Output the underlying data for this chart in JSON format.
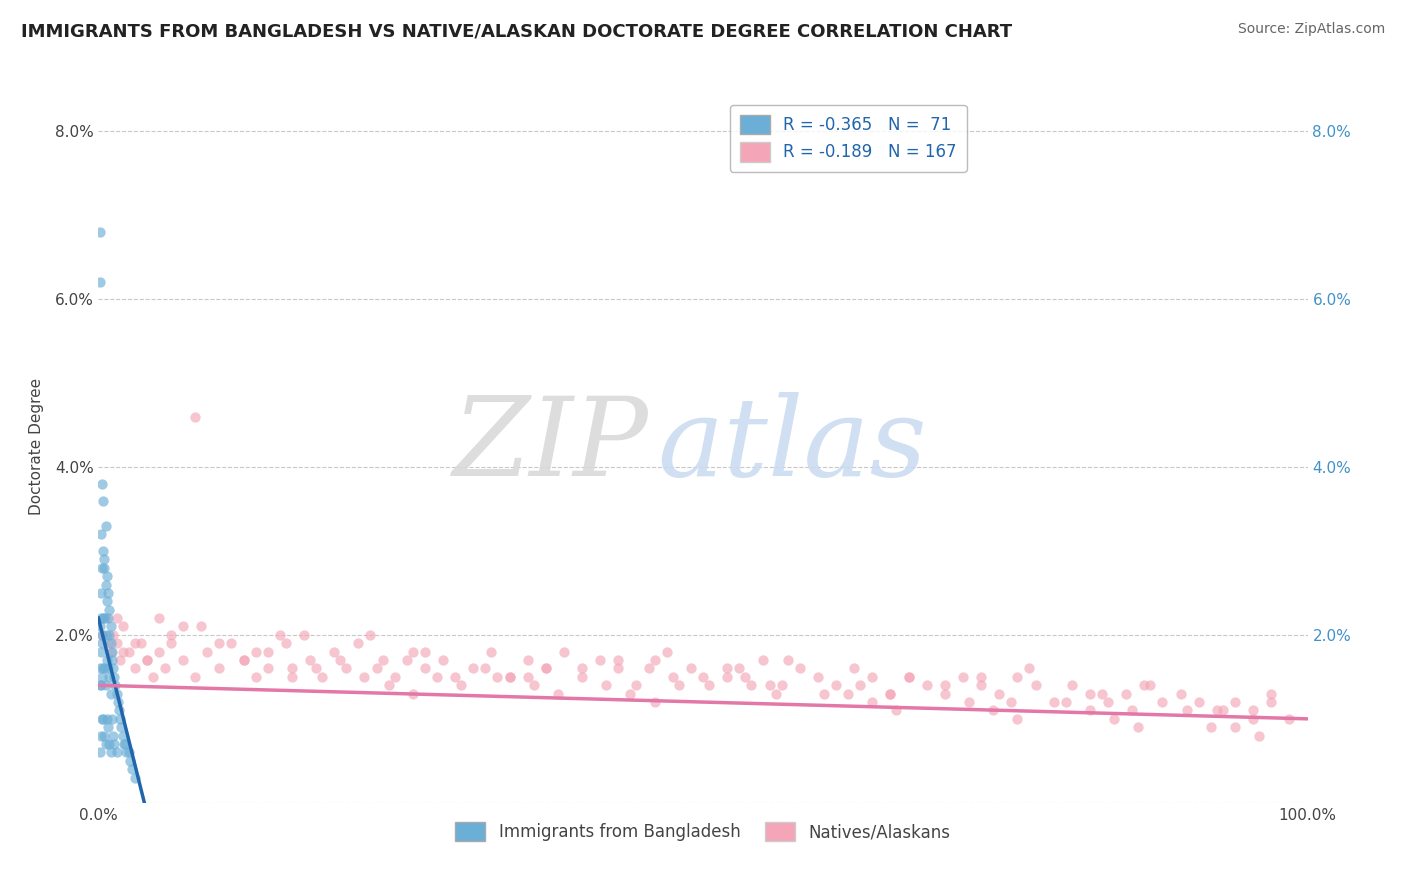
{
  "title": "IMMIGRANTS FROM BANGLADESH VS NATIVE/ALASKAN DOCTORATE DEGREE CORRELATION CHART",
  "source": "Source: ZipAtlas.com",
  "ylabel": "Doctorate Degree",
  "xlim": [
    0.0,
    1.0
  ],
  "ylim": [
    0.0,
    0.085
  ],
  "y_ticks": [
    0.0,
    0.02,
    0.04,
    0.06,
    0.08
  ],
  "y_tick_labels_left": [
    "",
    "2.0%",
    "4.0%",
    "6.0%",
    "8.0%"
  ],
  "y_tick_labels_right": [
    "",
    "2.0%",
    "4.0%",
    "6.0%",
    "8.0%"
  ],
  "legend_r_entries": [
    {
      "color": "#aac8e8",
      "text_r": "R = -0.365",
      "text_n": "N =  71"
    },
    {
      "color": "#f4b8c8",
      "text_r": "R = -0.189",
      "text_n": "N = 167"
    }
  ],
  "legend_labels_bottom": [
    "Immigrants from Bangladesh",
    "Natives/Alaskans"
  ],
  "blue_color": "#6baed6",
  "pink_color": "#f4a6b8",
  "blue_line_color": "#2166ac",
  "pink_line_color": "#e377a8",
  "blue_line_x": [
    0.0,
    0.038
  ],
  "blue_line_y": [
    0.022,
    0.0
  ],
  "pink_line_x": [
    0.0,
    1.0
  ],
  "pink_line_y": [
    0.014,
    0.01
  ],
  "background_color": "#ffffff",
  "grid_color": "#c8c8c8",
  "blue_scatter_x": [
    0.001,
    0.001,
    0.001,
    0.001,
    0.001,
    0.002,
    0.002,
    0.002,
    0.002,
    0.002,
    0.003,
    0.003,
    0.003,
    0.003,
    0.003,
    0.004,
    0.004,
    0.004,
    0.004,
    0.005,
    0.005,
    0.005,
    0.005,
    0.006,
    0.006,
    0.006,
    0.006,
    0.007,
    0.007,
    0.007,
    0.008,
    0.008,
    0.008,
    0.009,
    0.009,
    0.009,
    0.01,
    0.01,
    0.01,
    0.011,
    0.011,
    0.012,
    0.012,
    0.013,
    0.013,
    0.014,
    0.015,
    0.015,
    0.016,
    0.017,
    0.018,
    0.019,
    0.02,
    0.021,
    0.022,
    0.023,
    0.025,
    0.026,
    0.028,
    0.03,
    0.001,
    0.002,
    0.003,
    0.004,
    0.005,
    0.006,
    0.007,
    0.008,
    0.009,
    0.01,
    0.011
  ],
  "blue_scatter_y": [
    0.068,
    0.021,
    0.016,
    0.014,
    0.006,
    0.032,
    0.022,
    0.018,
    0.014,
    0.008,
    0.038,
    0.028,
    0.02,
    0.015,
    0.01,
    0.03,
    0.022,
    0.016,
    0.01,
    0.028,
    0.022,
    0.016,
    0.008,
    0.026,
    0.02,
    0.014,
    0.007,
    0.024,
    0.017,
    0.01,
    0.022,
    0.016,
    0.009,
    0.02,
    0.015,
    0.007,
    0.019,
    0.013,
    0.006,
    0.018,
    0.01,
    0.016,
    0.008,
    0.015,
    0.007,
    0.014,
    0.013,
    0.006,
    0.012,
    0.011,
    0.01,
    0.009,
    0.008,
    0.007,
    0.007,
    0.006,
    0.006,
    0.005,
    0.004,
    0.003,
    0.062,
    0.025,
    0.019,
    0.036,
    0.029,
    0.033,
    0.027,
    0.025,
    0.023,
    0.021,
    0.017
  ],
  "pink_scatter_x": [
    0.003,
    0.006,
    0.008,
    0.01,
    0.012,
    0.015,
    0.018,
    0.02,
    0.025,
    0.03,
    0.035,
    0.04,
    0.045,
    0.05,
    0.055,
    0.06,
    0.07,
    0.08,
    0.09,
    0.1,
    0.11,
    0.12,
    0.13,
    0.14,
    0.15,
    0.16,
    0.175,
    0.185,
    0.195,
    0.205,
    0.215,
    0.225,
    0.235,
    0.245,
    0.26,
    0.27,
    0.285,
    0.295,
    0.31,
    0.325,
    0.34,
    0.355,
    0.37,
    0.385,
    0.4,
    0.415,
    0.43,
    0.445,
    0.46,
    0.475,
    0.49,
    0.505,
    0.52,
    0.535,
    0.55,
    0.565,
    0.58,
    0.595,
    0.61,
    0.625,
    0.64,
    0.655,
    0.67,
    0.685,
    0.7,
    0.715,
    0.73,
    0.745,
    0.76,
    0.775,
    0.79,
    0.805,
    0.82,
    0.835,
    0.85,
    0.865,
    0.88,
    0.895,
    0.91,
    0.925,
    0.94,
    0.955,
    0.97,
    0.985,
    0.05,
    0.1,
    0.2,
    0.3,
    0.4,
    0.5,
    0.6,
    0.7,
    0.8,
    0.9,
    0.03,
    0.13,
    0.23,
    0.33,
    0.43,
    0.53,
    0.63,
    0.73,
    0.83,
    0.93,
    0.07,
    0.17,
    0.27,
    0.37,
    0.47,
    0.57,
    0.67,
    0.77,
    0.87,
    0.97,
    0.015,
    0.085,
    0.155,
    0.255,
    0.355,
    0.455,
    0.555,
    0.655,
    0.755,
    0.855,
    0.955,
    0.02,
    0.12,
    0.22,
    0.32,
    0.42,
    0.52,
    0.62,
    0.72,
    0.82,
    0.92,
    0.04,
    0.14,
    0.24,
    0.34,
    0.44,
    0.54,
    0.64,
    0.74,
    0.84,
    0.94,
    0.06,
    0.16,
    0.26,
    0.36,
    0.46,
    0.56,
    0.66,
    0.76,
    0.86,
    0.96,
    0.08,
    0.18,
    0.28,
    0.38,
    0.48
  ],
  "pink_scatter_y": [
    0.02,
    0.022,
    0.019,
    0.018,
    0.02,
    0.019,
    0.017,
    0.021,
    0.018,
    0.016,
    0.019,
    0.017,
    0.015,
    0.018,
    0.016,
    0.02,
    0.017,
    0.015,
    0.018,
    0.016,
    0.019,
    0.017,
    0.015,
    0.018,
    0.02,
    0.016,
    0.017,
    0.015,
    0.018,
    0.016,
    0.019,
    0.02,
    0.017,
    0.015,
    0.018,
    0.016,
    0.017,
    0.015,
    0.016,
    0.018,
    0.015,
    0.017,
    0.016,
    0.018,
    0.015,
    0.017,
    0.016,
    0.014,
    0.017,
    0.015,
    0.016,
    0.014,
    0.016,
    0.015,
    0.017,
    0.014,
    0.016,
    0.015,
    0.014,
    0.016,
    0.015,
    0.013,
    0.015,
    0.014,
    0.013,
    0.015,
    0.014,
    0.013,
    0.015,
    0.014,
    0.012,
    0.014,
    0.013,
    0.012,
    0.013,
    0.014,
    0.012,
    0.013,
    0.012,
    0.011,
    0.012,
    0.011,
    0.013,
    0.01,
    0.022,
    0.019,
    0.017,
    0.014,
    0.016,
    0.015,
    0.013,
    0.014,
    0.012,
    0.011,
    0.019,
    0.018,
    0.016,
    0.015,
    0.017,
    0.016,
    0.014,
    0.015,
    0.013,
    0.011,
    0.021,
    0.02,
    0.018,
    0.016,
    0.018,
    0.017,
    0.015,
    0.016,
    0.014,
    0.012,
    0.022,
    0.021,
    0.019,
    0.017,
    0.015,
    0.016,
    0.014,
    0.013,
    0.012,
    0.011,
    0.01,
    0.018,
    0.017,
    0.015,
    0.016,
    0.014,
    0.015,
    0.013,
    0.012,
    0.011,
    0.009,
    0.017,
    0.016,
    0.014,
    0.015,
    0.013,
    0.014,
    0.012,
    0.011,
    0.01,
    0.009,
    0.019,
    0.015,
    0.013,
    0.014,
    0.012,
    0.013,
    0.011,
    0.01,
    0.009,
    0.008,
    0.046,
    0.016,
    0.015,
    0.013,
    0.014
  ]
}
